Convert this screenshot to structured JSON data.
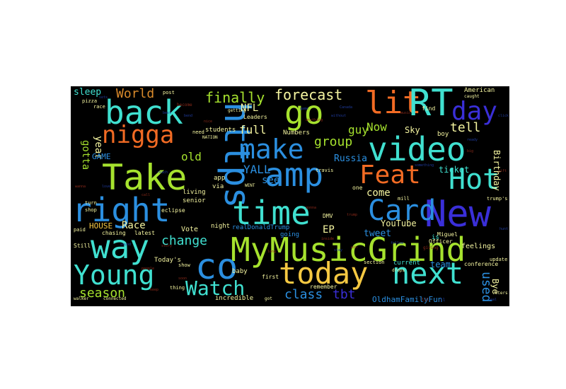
{
  "colors": {
    "background": "#000000",
    "page": "#ffffff"
  },
  "words": {
    "mymusicgrind": "MyMusicGrind",
    "https": "https",
    "take": "Take",
    "amp": "amp",
    "new": "New",
    "right": "right",
    "time": "time",
    "way": "way",
    "video": "video",
    "back": "back",
    "young": "Young",
    "co": "co",
    "today": "today",
    "next": "next",
    "go": "go",
    "lit": "lit",
    "rt": "RT",
    "nigga": "nigga",
    "make": "make",
    "hot": "Hot",
    "card": "Card",
    "feat": "Feat",
    "day": "day",
    "watch": "Watch",
    "finally": "finally",
    "forecast": "forecast",
    "world": "World",
    "change": "change",
    "season": "season",
    "class": "class",
    "tbt": "tbt",
    "used": "used",
    "oldhamfamilyfun": "OldhamFamilyFun",
    "group": "group",
    "full": "full",
    "old": "old",
    "yall": "YALL",
    "see": "see",
    "russia": "Russia",
    "now": "Now",
    "guy": "guy",
    "tell": "tell",
    "nfl": "NFL",
    "come": "come",
    "ep": "EP",
    "tweet": "tweet",
    "youtube": "YouTube",
    "race": "Race",
    "gotta": "gotta",
    "year": "year",
    "game": "GAME",
    "sleep": "sleep",
    "house": "HOUSE",
    "ticket": "ticket",
    "birthday": "Birthday",
    "bye": "Bye",
    "team": "team",
    "sky": "Sky",
    "feelings": "feelings",
    "realdonaldtrump": "realDonaldTrump",
    "going": "going",
    "vote": "Vote",
    "todays": "Today's",
    "baby": "baby",
    "incredible": "incredible",
    "living": "living",
    "senior": "senior",
    "first": "first",
    "current": "current",
    "remember": "remember",
    "american": "American",
    "students": "students",
    "numbers": "Numbers",
    "night": "night",
    "app": "app",
    "via": "via",
    "chasing": "chasing",
    "latest": "latest",
    "boy": "boy",
    "conference": "conference",
    "still": "Still",
    "eclipse": "eclipse",
    "leaders": "Leaders",
    "find": "find",
    "officer": "Officer",
    "miguel": "Miguel",
    "dmv": "DMV",
    "getting": "getting",
    "need": "need",
    "turn": "turn",
    "shop": "shop",
    "pizza": "pizza",
    "race2": "race",
    "post": "post",
    "travis": "travis",
    "section": "section",
    "update": "update",
    "mill": "mill",
    "trumps": "trump's",
    "paid": "paid",
    "thing": "thing",
    "voters": "voters",
    "connected": "connected",
    "walker": "walker",
    "caught": "caught",
    "got": "got",
    "nation": "NATION",
    "went": "WENT",
    "drops": "drops",
    "become": "become",
    "giving": "giving",
    "bend": "bend",
    "wanna": "wanna",
    "without": "without",
    "trump": "trump",
    "something": "something",
    "people": "people",
    "reach": "reach",
    "anything": "anything",
    "sound": "sound",
    "music": "music",
    "click": "click",
    "story": "story",
    "canada": "Canada",
    "soon": "soon",
    "hunt": "hunt",
    "inside": "inside",
    "sets": "sets",
    "gift": "gift",
    "stay": "stay",
    "is": "is",
    "ll": "ll",
    "lil": "lil",
    "gonna": "gonna",
    "one": "one",
    "love": "love",
    "keep": "keep",
    "game2": "game",
    "show": "show",
    "long": "long",
    "ready": "ready",
    "big": "big",
    "follow": "follow",
    "nice": "nice",
    "win": "win",
    "best": "best",
    "call": "call",
    "real": "real"
  }
}
